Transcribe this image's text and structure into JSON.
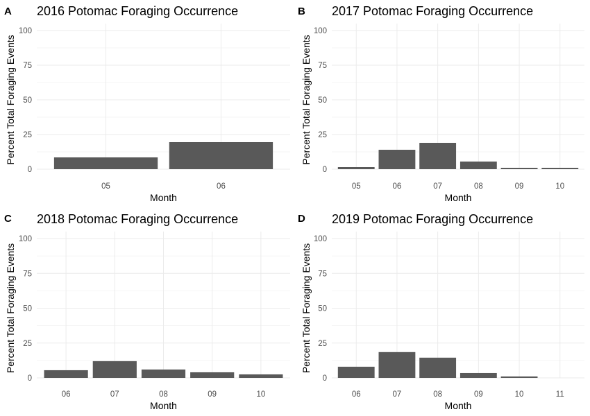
{
  "chart_data": [
    {
      "type": "bar",
      "panel_label": "A",
      "title": "2016 Potomac Foraging Occurrence",
      "xlabel": "Month",
      "ylabel": "Percent Total Foraging Events",
      "categories": [
        "05",
        "06"
      ],
      "values": [
        8.5,
        19.5
      ],
      "ylim": [
        0,
        100
      ],
      "yticks": [
        "0",
        "25",
        "50",
        "75",
        "100"
      ],
      "bar_color": "#595959",
      "grid": true
    },
    {
      "type": "bar",
      "panel_label": "B",
      "title": "2017 Potomac Foraging Occurrence",
      "xlabel": "Month",
      "ylabel": "Percent Total Foraging Events",
      "categories": [
        "05",
        "06",
        "07",
        "08",
        "09",
        "10"
      ],
      "values": [
        1.5,
        14,
        19,
        5.5,
        1,
        1
      ],
      "ylim": [
        0,
        100
      ],
      "yticks": [
        "0",
        "25",
        "50",
        "75",
        "100"
      ],
      "bar_color": "#595959",
      "grid": true
    },
    {
      "type": "bar",
      "panel_label": "C",
      "title": "2018 Potomac Foraging Occurrence",
      "xlabel": "Month",
      "ylabel": "Percent Total Foraging Events",
      "categories": [
        "06",
        "07",
        "08",
        "09",
        "10"
      ],
      "values": [
        5.5,
        12,
        6,
        4,
        2.5
      ],
      "ylim": [
        0,
        100
      ],
      "yticks": [
        "0",
        "25",
        "50",
        "75",
        "100"
      ],
      "bar_color": "#595959",
      "grid": true
    },
    {
      "type": "bar",
      "panel_label": "D",
      "title": "2019 Potomac Foraging Occurrence",
      "xlabel": "Month",
      "ylabel": "Percent Total Foraging Events",
      "categories": [
        "06",
        "07",
        "08",
        "09",
        "10",
        "11"
      ],
      "values": [
        8,
        18.5,
        14.5,
        3.5,
        1,
        0
      ],
      "ylim": [
        0,
        100
      ],
      "yticks": [
        "0",
        "25",
        "50",
        "75",
        "100"
      ],
      "bar_color": "#595959",
      "grid": true
    }
  ]
}
